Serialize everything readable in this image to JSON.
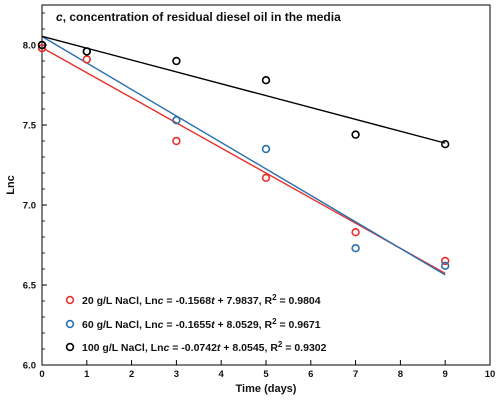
{
  "chart_data": {
    "type": "scatter",
    "title_prefix": "c",
    "title_rest": ", concentration of residual diesel oil in the media",
    "xlabel": "Time (days)",
    "ylabel": "Lnc",
    "xlim": [
      0,
      10
    ],
    "ylim": [
      6.0,
      8.25
    ],
    "xticks": [
      0,
      1,
      2,
      3,
      4,
      5,
      6,
      7,
      8,
      9,
      10
    ],
    "yticks": [
      6.0,
      6.5,
      7.0,
      7.5,
      8.0
    ],
    "ytick_labels": [
      "6.0",
      "6.5",
      "7.0",
      "7.5",
      "8.0"
    ],
    "grid": false,
    "legend_position": "bottom-left",
    "series": [
      {
        "name": "20 g/L NaCl",
        "color": "#e8302a",
        "x": [
          0,
          1,
          3,
          5,
          7,
          9
        ],
        "y": [
          7.98,
          7.91,
          7.4,
          7.17,
          6.83,
          6.65
        ],
        "fit": {
          "slope": -0.1568,
          "intercept": 7.9837
        },
        "legend": {
          "name": "20 g/L NaCl, Ln",
          "c": "c",
          "eq_a": " = -0.1568",
          "t": "t",
          "eq_b": " + 7.9837, R",
          "sup": "2",
          "eq_c": " = 0.9804"
        }
      },
      {
        "name": "60 g/L NaCl",
        "color": "#2a6fae",
        "x": [
          0,
          1,
          3,
          5,
          7,
          9
        ],
        "y": [
          8.0,
          7.96,
          7.53,
          7.35,
          6.73,
          6.62
        ],
        "fit": {
          "slope": -0.1655,
          "intercept": 8.0529
        },
        "legend": {
          "name": "60 g/L NaCl, Ln",
          "c": "c",
          "eq_a": " = -0.1655",
          "t": "t",
          "eq_b": " + 8.0529, R",
          "sup": "2",
          "eq_c": " = 0.9671"
        }
      },
      {
        "name": "100 g/L NaCl",
        "color": "#000000",
        "x": [
          0,
          1,
          3,
          5,
          7,
          9
        ],
        "y": [
          8.0,
          7.96,
          7.9,
          7.78,
          7.44,
          7.38
        ],
        "fit": {
          "slope": -0.0742,
          "intercept": 8.0545
        },
        "legend": {
          "name": "100 g/L NaCl, Ln",
          "c": "c",
          "eq_a": " = -0.0742",
          "t": "t",
          "eq_b": " + 8.0545, R",
          "sup": "2",
          "eq_c": " = 0.9302"
        }
      }
    ]
  }
}
